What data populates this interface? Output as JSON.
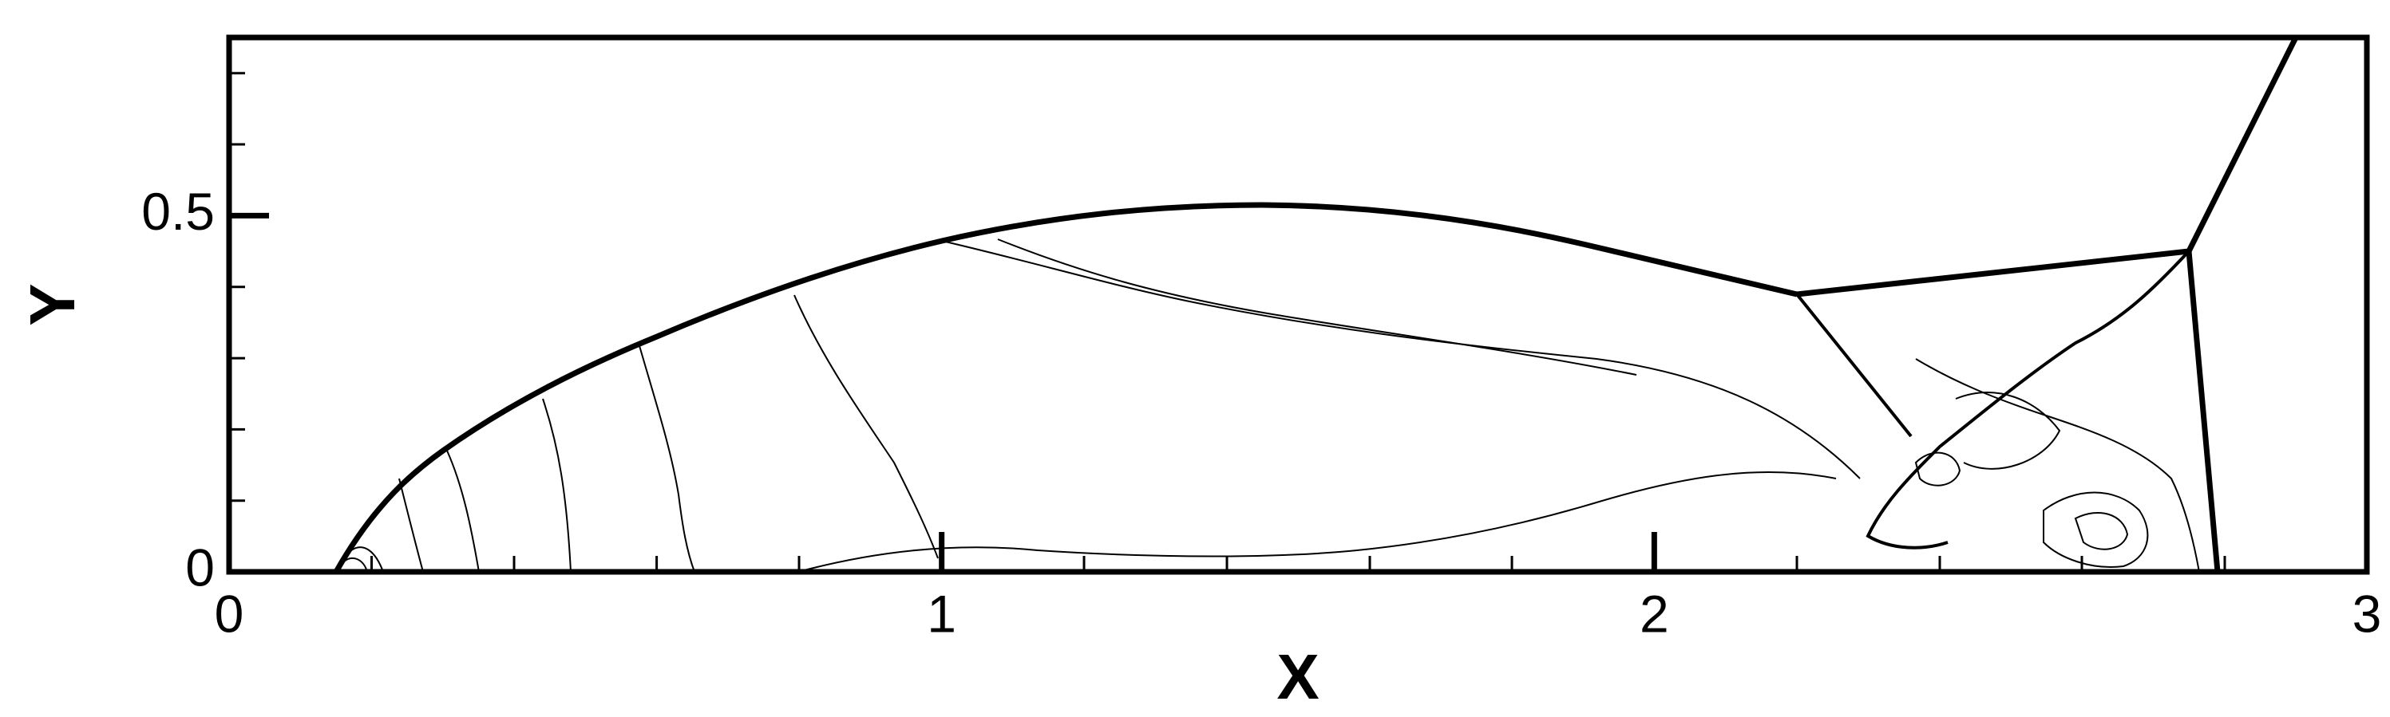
{
  "chart_data": {
    "type": "contour",
    "xlabel": "X",
    "ylabel": "Y",
    "xlim": [
      0,
      3
    ],
    "ylim": [
      0,
      0.75
    ],
    "xticks": [
      0,
      1,
      2,
      3
    ],
    "yticks": [
      0,
      0.5
    ]
  }
}
